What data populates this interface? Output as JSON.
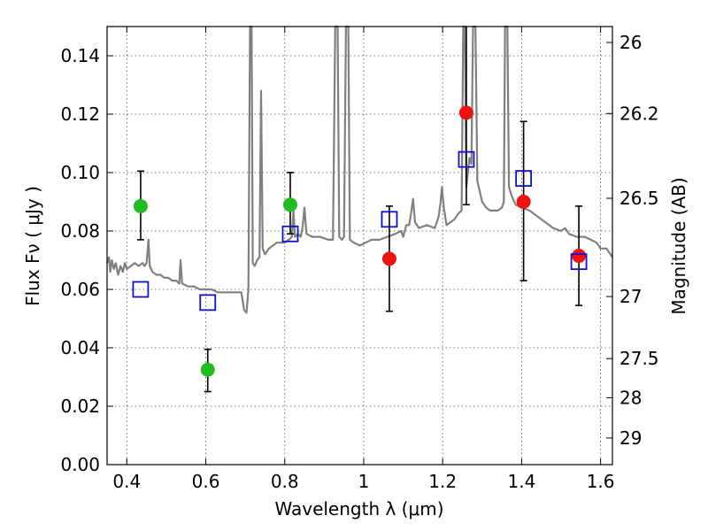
{
  "chart_data": {
    "type": "scatter",
    "title": "",
    "xlabel": "Wavelength  λ (μm)",
    "ylabel": "Flux  Fν  ( μJy )",
    "y2label": "Magnitude (AB)",
    "xlim": [
      0.35,
      1.63
    ],
    "ylim": [
      0.0,
      0.15
    ],
    "grid": true,
    "x_ticks": [
      0.4,
      0.6,
      0.8,
      1.0,
      1.2,
      1.4,
      1.6
    ],
    "x_tick_labels": [
      "0.4",
      "0.6",
      "0.8",
      "1",
      "1.2",
      "1.4",
      "1.6"
    ],
    "y_ticks": [
      0.0,
      0.02,
      0.04,
      0.06,
      0.08,
      0.1,
      0.12,
      0.14
    ],
    "y_tick_labels": [
      "0.00",
      "0.02",
      "0.04",
      "0.06",
      "0.08",
      "0.10",
      "0.12",
      "0.14"
    ],
    "y2_ticks": [
      {
        "label": "26",
        "mag": 26.0
      },
      {
        "label": "26.2",
        "mag": 26.2
      },
      {
        "label": "26.5",
        "mag": 26.5
      },
      {
        "label": "27",
        "mag": 27.0
      },
      {
        "label": "27.5",
        "mag": 27.5
      },
      {
        "label": "28",
        "mag": 28.0
      },
      {
        "label": "29",
        "mag": 29.0
      }
    ],
    "series": [
      {
        "marker": "circle",
        "color": "#22bb22",
        "points": [
          {
            "x": 0.435,
            "y": 0.0885,
            "lo": 0.077,
            "hi": 0.1005
          },
          {
            "x": 0.605,
            "y": 0.0325,
            "lo": 0.025,
            "hi": 0.0395
          },
          {
            "x": 0.814,
            "y": 0.089,
            "lo": 0.079,
            "hi": 0.1
          }
        ]
      },
      {
        "marker": "circle",
        "color": "#ee1111",
        "points": [
          {
            "x": 1.065,
            "y": 0.0705,
            "lo": 0.0525,
            "hi": 0.0885
          },
          {
            "x": 1.26,
            "y": 0.1205,
            "lo": 0.089,
            "hi": 0.152
          },
          {
            "x": 1.405,
            "y": 0.09,
            "lo": 0.063,
            "hi": 0.1175
          },
          {
            "x": 1.545,
            "y": 0.0715,
            "lo": 0.0545,
            "hi": 0.0885
          }
        ]
      },
      {
        "marker": "open-square",
        "color": "#1111cc",
        "points": [
          {
            "x": 0.435,
            "y": 0.06
          },
          {
            "x": 0.605,
            "y": 0.0555
          },
          {
            "x": 0.814,
            "y": 0.079
          },
          {
            "x": 1.065,
            "y": 0.084
          },
          {
            "x": 1.26,
            "y": 0.1045
          },
          {
            "x": 1.405,
            "y": 0.098
          },
          {
            "x": 1.545,
            "y": 0.0695
          }
        ]
      }
    ],
    "spectrum": {
      "color": "#808080",
      "points": [
        [
          0.35,
          0.069
        ],
        [
          0.355,
          0.071
        ],
        [
          0.358,
          0.066
        ],
        [
          0.362,
          0.07
        ],
        [
          0.367,
          0.067
        ],
        [
          0.372,
          0.069
        ],
        [
          0.378,
          0.065
        ],
        [
          0.384,
          0.068
        ],
        [
          0.39,
          0.066
        ],
        [
          0.395,
          0.069
        ],
        [
          0.4,
          0.067
        ],
        [
          0.41,
          0.068
        ],
        [
          0.42,
          0.069
        ],
        [
          0.43,
          0.068
        ],
        [
          0.44,
          0.069
        ],
        [
          0.445,
          0.068
        ],
        [
          0.45,
          0.069
        ],
        [
          0.455,
          0.077
        ],
        [
          0.458,
          0.068
        ],
        [
          0.465,
          0.066
        ],
        [
          0.475,
          0.065
        ],
        [
          0.485,
          0.065
        ],
        [
          0.495,
          0.064
        ],
        [
          0.505,
          0.064
        ],
        [
          0.515,
          0.063
        ],
        [
          0.525,
          0.063
        ],
        [
          0.533,
          0.062
        ],
        [
          0.536,
          0.07
        ],
        [
          0.54,
          0.062
        ],
        [
          0.555,
          0.061
        ],
        [
          0.57,
          0.061
        ],
        [
          0.585,
          0.06
        ],
        [
          0.6,
          0.06
        ],
        [
          0.615,
          0.06
        ],
        [
          0.63,
          0.059
        ],
        [
          0.645,
          0.059
        ],
        [
          0.66,
          0.059
        ],
        [
          0.675,
          0.059
        ],
        [
          0.69,
          0.059
        ],
        [
          0.697,
          0.053
        ],
        [
          0.703,
          0.052
        ],
        [
          0.708,
          0.06
        ],
        [
          0.712,
          0.15
        ],
        [
          0.716,
          0.15
        ],
        [
          0.719,
          0.069
        ],
        [
          0.724,
          0.068
        ],
        [
          0.73,
          0.07
        ],
        [
          0.736,
          0.071
        ],
        [
          0.74,
          0.128
        ],
        [
          0.744,
          0.074
        ],
        [
          0.75,
          0.072
        ],
        [
          0.76,
          0.074
        ],
        [
          0.77,
          0.075
        ],
        [
          0.78,
          0.076
        ],
        [
          0.79,
          0.076
        ],
        [
          0.8,
          0.076
        ],
        [
          0.81,
          0.077
        ],
        [
          0.818,
          0.078
        ],
        [
          0.822,
          0.087
        ],
        [
          0.826,
          0.078
        ],
        [
          0.834,
          0.079
        ],
        [
          0.84,
          0.078
        ],
        [
          0.845,
          0.081
        ],
        [
          0.85,
          0.088
        ],
        [
          0.855,
          0.079
        ],
        [
          0.87,
          0.078
        ],
        [
          0.89,
          0.078
        ],
        [
          0.91,
          0.077
        ],
        [
          0.922,
          0.077
        ],
        [
          0.928,
          0.15
        ],
        [
          0.934,
          0.15
        ],
        [
          0.938,
          0.078
        ],
        [
          0.945,
          0.077
        ],
        [
          0.95,
          0.078
        ],
        [
          0.955,
          0.15
        ],
        [
          0.961,
          0.15
        ],
        [
          0.965,
          0.077
        ],
        [
          0.975,
          0.076
        ],
        [
          0.99,
          0.075
        ],
        [
          1.005,
          0.076
        ],
        [
          1.02,
          0.077
        ],
        [
          1.04,
          0.077
        ],
        [
          1.06,
          0.078
        ],
        [
          1.08,
          0.079
        ],
        [
          1.095,
          0.08
        ],
        [
          1.1,
          0.078
        ],
        [
          1.108,
          0.082
        ],
        [
          1.115,
          0.082
        ],
        [
          1.12,
          0.086
        ],
        [
          1.125,
          0.091
        ],
        [
          1.13,
          0.083
        ],
        [
          1.14,
          0.081
        ],
        [
          1.16,
          0.082
        ],
        [
          1.18,
          0.081
        ],
        [
          1.19,
          0.085
        ],
        [
          1.195,
          0.09
        ],
        [
          1.198,
          0.095
        ],
        [
          1.203,
          0.088
        ],
        [
          1.21,
          0.082
        ],
        [
          1.22,
          0.083
        ],
        [
          1.23,
          0.084
        ],
        [
          1.24,
          0.086
        ],
        [
          1.248,
          0.087
        ],
        [
          1.252,
          0.15
        ],
        [
          1.256,
          0.15
        ],
        [
          1.26,
          0.095
        ],
        [
          1.264,
          0.1
        ],
        [
          1.268,
          0.105
        ],
        [
          1.273,
          0.103
        ],
        [
          1.277,
          0.15
        ],
        [
          1.283,
          0.15
        ],
        [
          1.288,
          0.097
        ],
        [
          1.293,
          0.094
        ],
        [
          1.3,
          0.09
        ],
        [
          1.31,
          0.088
        ],
        [
          1.32,
          0.087
        ],
        [
          1.33,
          0.087
        ],
        [
          1.34,
          0.087
        ],
        [
          1.35,
          0.088
        ],
        [
          1.355,
          0.09
        ],
        [
          1.358,
          0.15
        ],
        [
          1.364,
          0.15
        ],
        [
          1.368,
          0.095
        ],
        [
          1.375,
          0.092
        ],
        [
          1.385,
          0.089
        ],
        [
          1.4,
          0.088
        ],
        [
          1.42,
          0.087
        ],
        [
          1.44,
          0.085
        ],
        [
          1.46,
          0.083
        ],
        [
          1.48,
          0.081
        ],
        [
          1.5,
          0.08
        ],
        [
          1.51,
          0.081
        ],
        [
          1.52,
          0.079
        ],
        [
          1.54,
          0.078
        ],
        [
          1.56,
          0.078
        ],
        [
          1.575,
          0.077
        ],
        [
          1.59,
          0.076
        ],
        [
          1.6,
          0.074
        ],
        [
          1.615,
          0.074
        ],
        [
          1.625,
          0.072
        ],
        [
          1.63,
          0.071
        ]
      ]
    }
  }
}
